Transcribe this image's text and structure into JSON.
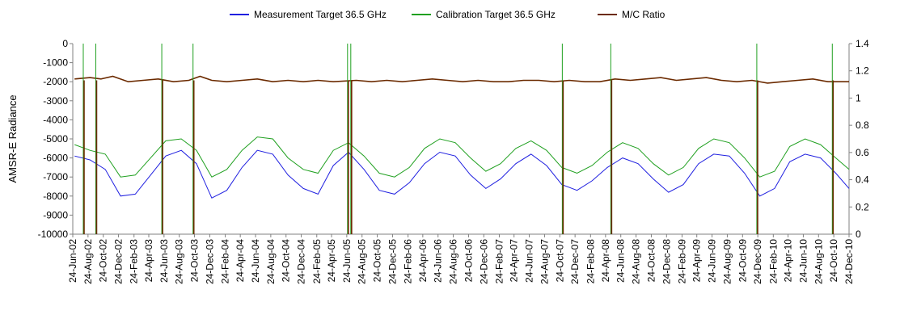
{
  "chart_data": {
    "type": "line",
    "ylabel_left": "AMSR-E Radiance",
    "ylim_left": [
      -10000,
      0
    ],
    "yticks_left": [
      "0",
      "-1000",
      "-2000",
      "-3000",
      "-4000",
      "-5000",
      "-6000",
      "-7000",
      "-8000",
      "-9000",
      "-10000"
    ],
    "ylim_right": [
      0,
      1.4
    ],
    "yticks_right": [
      "1.4",
      "1.2",
      "1",
      "0.8",
      "0.6",
      "0.4",
      "0.2",
      "0"
    ],
    "x_range": [
      "2002-06-24",
      "2010-12-24"
    ],
    "xticks": [
      "24-Jun-02",
      "24-Aug-02",
      "24-Oct-02",
      "24-Dec-02",
      "24-Feb-03",
      "24-Apr-03",
      "24-Jun-03",
      "24-Aug-03",
      "24-Oct-03",
      "24-Dec-03",
      "24-Feb-04",
      "24-Apr-04",
      "24-Jun-04",
      "24-Aug-04",
      "24-Oct-04",
      "24-Dec-04",
      "24-Feb-05",
      "24-Apr-05",
      "24-Jun-05",
      "24-Aug-05",
      "24-Oct-05",
      "24-Dec-05",
      "24-Feb-06",
      "24-Apr-06",
      "24-Jun-06",
      "24-Aug-06",
      "24-Oct-06",
      "24-Dec-06",
      "24-Feb-07",
      "24-Apr-07",
      "24-Jun-07",
      "24-Aug-07",
      "24-Oct-07",
      "24-Dec-07",
      "24-Feb-08",
      "24-Apr-08",
      "24-Jun-08",
      "24-Aug-08",
      "24-Oct-08",
      "24-Dec-08",
      "24-Feb-09",
      "24-Apr-09",
      "24-Jun-09",
      "24-Aug-09",
      "24-Oct-09",
      "24-Dec-09",
      "24-Feb-10",
      "24-Apr-10",
      "24-Jun-10",
      "24-Aug-10",
      "24-Oct-10",
      "24-Dec-10"
    ],
    "legend_position": "top",
    "grid": false,
    "series": [
      {
        "name": "Measurement Target 36.5 GHz",
        "axis": "left",
        "color": "#2020e0",
        "x": [
          "2002-07-01",
          "2002-09-01",
          "2002-11-01",
          "2003-01-01",
          "2003-03-01",
          "2003-05-01",
          "2003-07-01",
          "2003-09-01",
          "2003-11-01",
          "2004-01-01",
          "2004-03-01",
          "2004-05-01",
          "2004-07-01",
          "2004-09-01",
          "2004-11-01",
          "2005-01-01",
          "2005-03-01",
          "2005-05-01",
          "2005-07-01",
          "2005-09-01",
          "2005-11-01",
          "2006-01-01",
          "2006-03-01",
          "2006-05-01",
          "2006-07-01",
          "2006-09-01",
          "2006-11-01",
          "2007-01-01",
          "2007-03-01",
          "2007-05-01",
          "2007-07-01",
          "2007-09-01",
          "2007-11-01",
          "2008-01-01",
          "2008-03-01",
          "2008-05-01",
          "2008-07-01",
          "2008-09-01",
          "2008-11-01",
          "2009-01-01",
          "2009-03-01",
          "2009-05-01",
          "2009-07-01",
          "2009-09-01",
          "2009-11-01",
          "2010-01-01",
          "2010-03-01",
          "2010-05-01",
          "2010-07-01",
          "2010-09-01",
          "2010-11-01",
          "2010-12-24"
        ],
        "y": [
          -5900,
          -6100,
          -6600,
          -8000,
          -7900,
          -6900,
          -5900,
          -5600,
          -6300,
          -8100,
          -7700,
          -6500,
          -5600,
          -5800,
          -6900,
          -7600,
          -7900,
          -6400,
          -5700,
          -6600,
          -7700,
          -7900,
          -7300,
          -6300,
          -5700,
          -5900,
          -6900,
          -7600,
          -7100,
          -6300,
          -5800,
          -6400,
          -7400,
          -7700,
          -7200,
          -6500,
          -6000,
          -6300,
          -7100,
          -7800,
          -7400,
          -6300,
          -5800,
          -5900,
          -6800,
          -8000,
          -7600,
          -6200,
          -5800,
          -6000,
          -6800,
          -7600
        ]
      },
      {
        "name": "Calibration Target 36.5 GHz",
        "axis": "left",
        "color": "#20a020",
        "x": [
          "2002-07-01",
          "2002-09-01",
          "2002-11-01",
          "2003-01-01",
          "2003-03-01",
          "2003-05-01",
          "2003-07-01",
          "2003-09-01",
          "2003-11-01",
          "2004-01-01",
          "2004-03-01",
          "2004-05-01",
          "2004-07-01",
          "2004-09-01",
          "2004-11-01",
          "2005-01-01",
          "2005-03-01",
          "2005-05-01",
          "2005-07-01",
          "2005-09-01",
          "2005-11-01",
          "2006-01-01",
          "2006-03-01",
          "2006-05-01",
          "2006-07-01",
          "2006-09-01",
          "2006-11-01",
          "2007-01-01",
          "2007-03-01",
          "2007-05-01",
          "2007-07-01",
          "2007-09-01",
          "2007-11-01",
          "2008-01-01",
          "2008-03-01",
          "2008-05-01",
          "2008-07-01",
          "2008-09-01",
          "2008-11-01",
          "2009-01-01",
          "2009-03-01",
          "2009-05-01",
          "2009-07-01",
          "2009-09-01",
          "2009-11-01",
          "2010-01-01",
          "2010-03-01",
          "2010-05-01",
          "2010-07-01",
          "2010-09-01",
          "2010-11-01",
          "2010-12-24"
        ],
        "y": [
          -5300,
          -5600,
          -5800,
          -7000,
          -6900,
          -6000,
          -5100,
          -5000,
          -5600,
          -7000,
          -6600,
          -5600,
          -4900,
          -5000,
          -6000,
          -6600,
          -6800,
          -5600,
          -5200,
          -5900,
          -6800,
          -7000,
          -6500,
          -5500,
          -5000,
          -5200,
          -6000,
          -6700,
          -6300,
          -5500,
          -5100,
          -5600,
          -6500,
          -6800,
          -6400,
          -5700,
          -5200,
          -5500,
          -6300,
          -6900,
          -6500,
          -5500,
          -5000,
          -5200,
          -6000,
          -7000,
          -6700,
          -5400,
          -5000,
          -5300,
          -6000,
          -6600
        ]
      },
      {
        "name": "M/C Ratio",
        "axis": "right",
        "color": "#6b2a00",
        "x": [
          "2002-07-01",
          "2002-09-01",
          "2002-10-15",
          "2002-12-01",
          "2003-02-01",
          "2003-04-01",
          "2003-06-01",
          "2003-08-01",
          "2003-10-01",
          "2003-11-15",
          "2004-01-01",
          "2004-03-01",
          "2004-05-01",
          "2004-07-01",
          "2004-09-01",
          "2004-11-01",
          "2005-01-01",
          "2005-03-01",
          "2005-05-01",
          "2005-08-01",
          "2005-10-01",
          "2005-12-01",
          "2006-02-01",
          "2006-04-01",
          "2006-06-01",
          "2006-08-01",
          "2006-10-01",
          "2006-12-01",
          "2007-02-01",
          "2007-04-01",
          "2007-06-01",
          "2007-08-01",
          "2007-10-01",
          "2007-12-01",
          "2008-02-01",
          "2008-04-01",
          "2008-06-01",
          "2008-08-01",
          "2008-10-01",
          "2008-12-01",
          "2009-02-01",
          "2009-04-01",
          "2009-06-01",
          "2009-08-01",
          "2009-10-01",
          "2009-12-01",
          "2010-02-01",
          "2010-04-01",
          "2010-06-01",
          "2010-08-01",
          "2010-10-01",
          "2010-12-24"
        ],
        "y": [
          1.14,
          1.15,
          1.14,
          1.16,
          1.12,
          1.13,
          1.14,
          1.12,
          1.13,
          1.16,
          1.13,
          1.12,
          1.13,
          1.14,
          1.12,
          1.13,
          1.12,
          1.13,
          1.12,
          1.13,
          1.12,
          1.13,
          1.12,
          1.13,
          1.14,
          1.13,
          1.12,
          1.13,
          1.12,
          1.12,
          1.13,
          1.13,
          1.12,
          1.13,
          1.12,
          1.12,
          1.14,
          1.13,
          1.14,
          1.15,
          1.13,
          1.14,
          1.15,
          1.13,
          1.12,
          1.13,
          1.11,
          1.12,
          1.13,
          1.14,
          1.12,
          1.12
        ]
      }
    ],
    "dropouts": [
      "2002-08-05",
      "2002-09-24",
      "2003-06-15",
      "2003-10-18",
      "2005-06-27",
      "2005-07-10",
      "2007-11-03",
      "2008-05-15",
      "2009-12-20",
      "2010-10-18"
    ]
  }
}
